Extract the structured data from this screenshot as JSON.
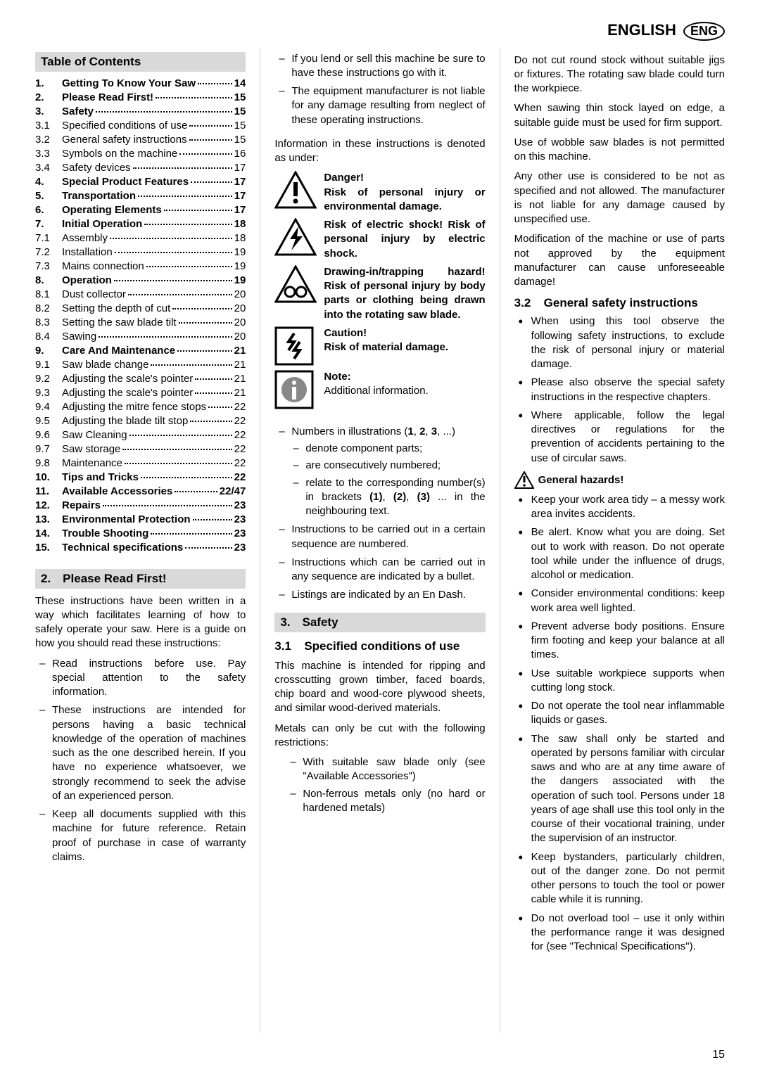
{
  "header": {
    "lang": "ENGLISH",
    "badge": "ENG"
  },
  "pageNumber": "15",
  "toc": {
    "title": "Table of Contents",
    "items": [
      {
        "num": "1.",
        "bold": true,
        "title": "Getting To Know Your Saw",
        "page": "14"
      },
      {
        "num": "2.",
        "bold": true,
        "title": "Please Read First!",
        "page": "15"
      },
      {
        "num": "3.",
        "bold": true,
        "title": "Safety",
        "page": "15"
      },
      {
        "num": "3.1",
        "bold": false,
        "title": "Specified conditions of use",
        "page": "15"
      },
      {
        "num": "3.2",
        "bold": false,
        "title": "General safety instructions",
        "page": "15"
      },
      {
        "num": "3.3",
        "bold": false,
        "title": "Symbols on the machine",
        "page": "16"
      },
      {
        "num": "3.4",
        "bold": false,
        "title": "Safety devices",
        "page": "17"
      },
      {
        "num": "4.",
        "bold": true,
        "title": "Special Product Features",
        "page": "17"
      },
      {
        "num": "5.",
        "bold": true,
        "title": "Transportation",
        "page": "17"
      },
      {
        "num": "6.",
        "bold": true,
        "title": "Operating Elements",
        "page": "17"
      },
      {
        "num": "7.",
        "bold": true,
        "title": "Initial Operation",
        "page": "18"
      },
      {
        "num": "7.1",
        "bold": false,
        "title": "Assembly",
        "page": "18"
      },
      {
        "num": "7.2",
        "bold": false,
        "title": "Installation",
        "page": "19"
      },
      {
        "num": "7.3",
        "bold": false,
        "title": "Mains connection",
        "page": "19"
      },
      {
        "num": "8.",
        "bold": true,
        "title": "Operation",
        "page": "19"
      },
      {
        "num": "8.1",
        "bold": false,
        "title": "Dust collector",
        "page": "20"
      },
      {
        "num": "8.2",
        "bold": false,
        "title": "Setting the depth of cut",
        "page": "20"
      },
      {
        "num": "8.3",
        "bold": false,
        "title": "Setting the saw blade tilt",
        "page": "20"
      },
      {
        "num": "8.4",
        "bold": false,
        "title": "Sawing",
        "page": "20"
      },
      {
        "num": "9.",
        "bold": true,
        "title": "Care And Maintenance",
        "page": "21"
      },
      {
        "num": "9.1",
        "bold": false,
        "title": "Saw blade change",
        "page": "21"
      },
      {
        "num": "9.2",
        "bold": false,
        "title": "Adjusting the scale's pointer",
        "page": "21"
      },
      {
        "num": "9.3",
        "bold": false,
        "title": "Adjusting the scale's pointer",
        "page": "21"
      },
      {
        "num": "9.4",
        "bold": false,
        "title": "Adjusting the mitre fence stops",
        "page": "22"
      },
      {
        "num": "9.5",
        "bold": false,
        "title": "Adjusting the blade tilt stop",
        "page": "22"
      },
      {
        "num": "9.6",
        "bold": false,
        "title": "Saw Cleaning",
        "page": "22"
      },
      {
        "num": "9.7",
        "bold": false,
        "title": "Saw storage",
        "page": "22"
      },
      {
        "num": "9.8",
        "bold": false,
        "title": "Maintenance",
        "page": "22"
      },
      {
        "num": "10.",
        "bold": true,
        "title": "Tips and Tricks",
        "page": "22"
      },
      {
        "num": "11.",
        "bold": true,
        "title": "Available Accessories",
        "page": "22/47"
      },
      {
        "num": "12.",
        "bold": true,
        "title": "Repairs",
        "page": "23"
      },
      {
        "num": "13.",
        "bold": true,
        "title": "Environmental Protection",
        "page": "23"
      },
      {
        "num": "14.",
        "bold": true,
        "title": "Trouble Shooting",
        "page": "23"
      },
      {
        "num": "15.",
        "bold": true,
        "title": "Technical specifications",
        "page": "23"
      }
    ]
  },
  "sec2": {
    "head": "2. Please Read First!",
    "intro": "These instructions have been written in a way which facilitates learning of how to safely operate your saw. Here is a guide on how you should read these instructions:",
    "list": [
      "Read instructions before use. Pay special attention to the safety information.",
      "These instructions are intended for persons having a basic technical knowledge of the operation of machines such as the one described herein. If you have no experience whatsoever, we strongly recommend to seek the advise of an experienced person.",
      "Keep all documents supplied with this machine for future reference. Retain proof of purchase in case of warranty claims.",
      "If you lend or sell this machine be sure to have these instructions go with it.",
      "The equipment manufacturer is not liable for any damage resulting from neglect of these operating instructions."
    ],
    "infoIntro": "Information in these instructions is denoted as under:"
  },
  "hazards": [
    {
      "bold": "Danger!",
      "text": "Risk of personal injury or environmental damage."
    },
    {
      "bold": "",
      "text": "Risk of electric shock!\nRisk of personal injury by electric shock."
    },
    {
      "bold": "",
      "text": "Drawing-in/trapping hazard!\nRisk of personal injury by body parts or clothing being drawn into the rotating saw blade."
    },
    {
      "bold": "Caution!",
      "text": "Risk of material damage."
    },
    {
      "bold": "Note:",
      "text": "Additional information."
    }
  ],
  "numIllus": {
    "lead": "Numbers in illustrations (1, 2, 3, ...)",
    "nested": [
      "denote component parts;",
      "are consecutively numbered;",
      "relate to the corresponding number(s) in brackets (1), (2), (3) ... in the neighbouring text."
    ]
  },
  "infoTail": [
    "Instructions to be carried out in a certain sequence are numbered.",
    "Instructions which can be carried out in any sequence are indicated by a bullet.",
    "Listings are indicated by an En Dash."
  ],
  "sec3": {
    "head": "3. Safety",
    "sub31": {
      "num": "3.1",
      "title": "Specified conditions of use"
    },
    "p31a": "This machine is intended for ripping and crosscutting grown timber, faced boards, chip board and wood-core plywood sheets, and similar wood-derived materials.",
    "p31b": "Metals can only be cut with the following restrictions:",
    "list31": [
      "With suitable saw blade only\n(see \"Available Accessories\")",
      "Non-ferrous metals only\n(no hard or hardened metals)"
    ],
    "p31c": "Do not cut round stock without suitable jigs or fixtures. The rotating saw blade could turn the workpiece.",
    "p31d": "When sawing thin stock layed on edge, a suitable guide must be used for firm support.",
    "p31e": "Use of wobble saw blades is not permitted on this machine.",
    "p31f": "Any other use is considered to be not as specified and not allowed. The manufacturer is not liable for any damage caused by unspecified use.",
    "p31g": "Modification of the machine or use of parts not approved by the equipment manufacturer can cause unforeseeable damage!",
    "sub32": {
      "num": "3.2",
      "title": "General safety instructions"
    },
    "list32a": [
      "When using this tool observe the following safety instructions, to exclude the risk of personal injury or material damage.",
      "Please also observe the special safety instructions in the respective chapters.",
      "Where applicable, follow the legal directives or regulations for the prevention of accidents pertaining to the use of circular saws."
    ],
    "genHaz": "General hazards!",
    "list32b": [
      "Keep your work area tidy – a messy work area invites accidents.",
      "Be alert. Know what you are doing. Set out to work with reason. Do not operate tool while under the influence of drugs, alcohol or medication.",
      "Consider environmental conditions: keep work area well lighted.",
      "Prevent adverse body positions. Ensure firm footing and keep your balance at all times.",
      "Use suitable workpiece supports when cutting long stock.",
      "Do not operate the tool near inflammable liquids or gases.",
      "The saw shall only be started and operated by persons familiar with circular saws and who are at any time aware of the dangers associated with the operation of such tool. Persons under 18 years of age shall use this tool only in the course of their vocational training, under the supervision of an instructor.",
      "Keep bystanders, particularly children, out of the danger zone. Do not permit other persons to touch the tool or power cable while it is running.",
      "Do not overload tool – use it only within the performance range it was designed for (see \"Technical Specifications\")."
    ]
  }
}
